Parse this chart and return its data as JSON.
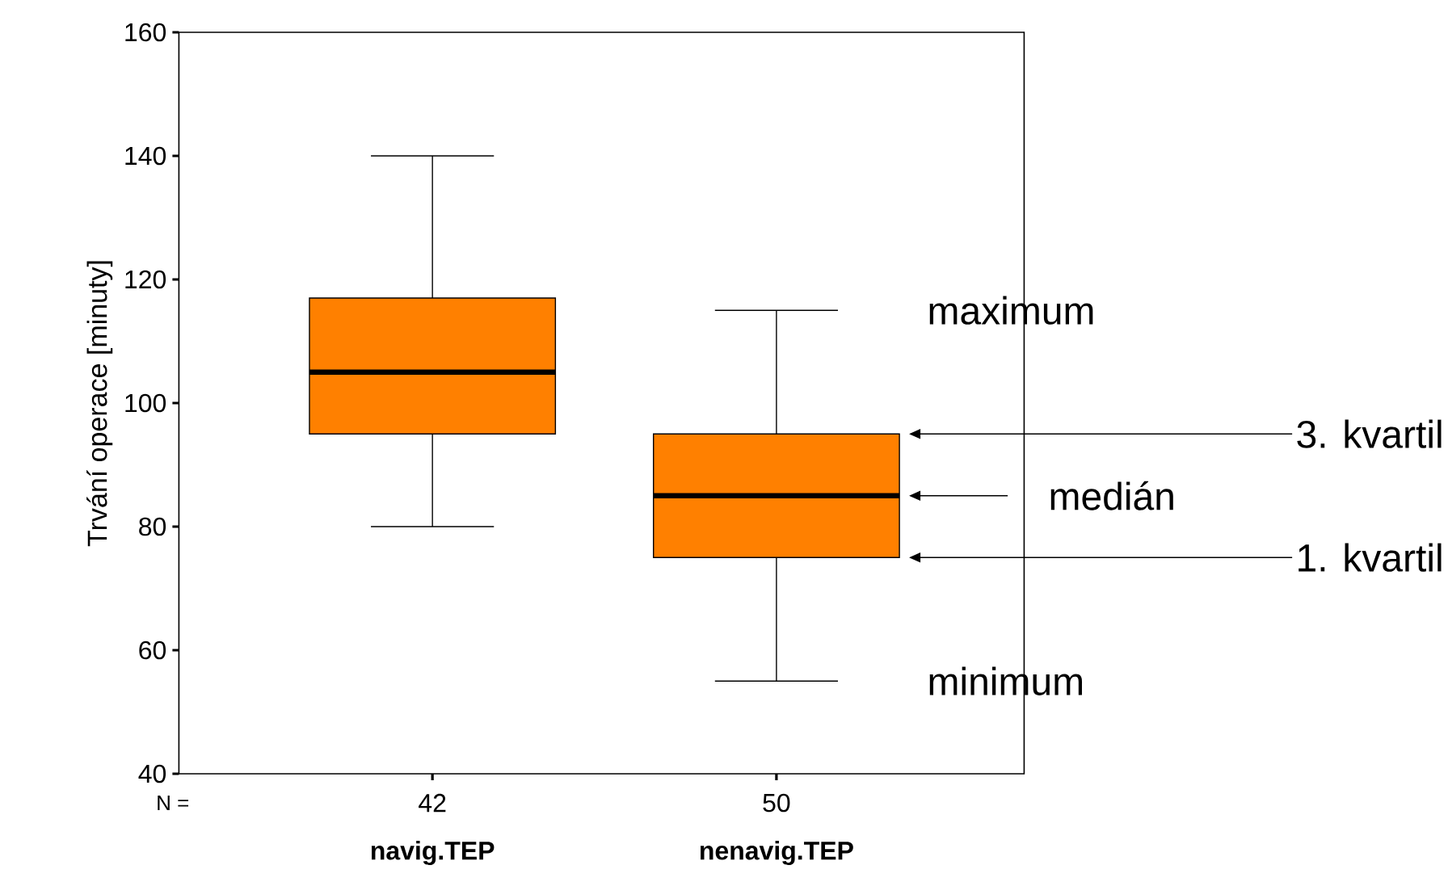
{
  "chart_data": {
    "type": "box",
    "ylabel": "Trvání operace  [minuty]",
    "categories": [
      "navig.TEP",
      "nenavig.TEP"
    ],
    "ylim": [
      40,
      160
    ],
    "yticks": [
      40,
      60,
      80,
      100,
      120,
      140,
      160
    ],
    "series": [
      {
        "color": "#ff8000",
        "boxes": [
          {
            "low": 80,
            "q1": 95,
            "median": 105,
            "q3": 117,
            "high": 140
          },
          {
            "low": 55,
            "q1": 75,
            "median": 85,
            "q3": 95,
            "high": 115
          }
        ]
      }
    ],
    "annotations": [
      "N =",
      "42",
      "50",
      "maximum",
      "3. kvartil",
      "medián",
      "1. kvartil",
      "minimum"
    ]
  }
}
